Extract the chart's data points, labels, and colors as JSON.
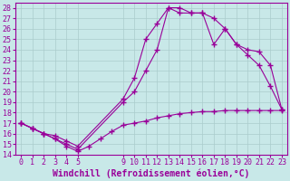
{
  "background_color": "#c8e8e8",
  "line_color": "#990099",
  "xlabel": "Windchill (Refroidissement éolien,°C)",
  "xlim": [
    -0.5,
    23.5
  ],
  "ylim": [
    14,
    28.5
  ],
  "yticks": [
    14,
    15,
    16,
    17,
    18,
    19,
    20,
    21,
    22,
    23,
    24,
    25,
    26,
    27,
    28
  ],
  "xticks": [
    0,
    1,
    2,
    3,
    4,
    5,
    9,
    10,
    11,
    12,
    13,
    14,
    15,
    16,
    17,
    18,
    19,
    20,
    21,
    22,
    23
  ],
  "line1_x": [
    0,
    1,
    2,
    3,
    4,
    5,
    9,
    10,
    11,
    12,
    13,
    14,
    15,
    16,
    17,
    18,
    19,
    20,
    21,
    22,
    23
  ],
  "line1_y": [
    17.0,
    16.5,
    16.0,
    15.8,
    15.3,
    14.8,
    19.3,
    21.3,
    25.0,
    26.5,
    28.0,
    28.0,
    27.5,
    27.5,
    27.0,
    26.0,
    24.5,
    24.0,
    23.8,
    22.5,
    18.3
  ],
  "line2_x": [
    0,
    1,
    2,
    3,
    4,
    5,
    9,
    10,
    11,
    12,
    13,
    14,
    15,
    16,
    17,
    18,
    19,
    20,
    21,
    22,
    23
  ],
  "line2_y": [
    17.0,
    16.5,
    16.0,
    15.5,
    15.0,
    14.5,
    19.0,
    20.0,
    22.0,
    24.0,
    28.0,
    27.5,
    27.5,
    27.5,
    24.5,
    26.0,
    24.5,
    23.5,
    22.5,
    20.5,
    18.3
  ],
  "line3_x": [
    0,
    1,
    2,
    3,
    4,
    5,
    6,
    7,
    8,
    9,
    10,
    11,
    12,
    13,
    14,
    15,
    16,
    17,
    18,
    19,
    20,
    21,
    22,
    23
  ],
  "line3_y": [
    17.0,
    16.5,
    16.0,
    15.5,
    14.8,
    14.3,
    14.8,
    15.5,
    16.2,
    16.8,
    17.0,
    17.2,
    17.5,
    17.7,
    17.9,
    18.0,
    18.1,
    18.1,
    18.2,
    18.2,
    18.2,
    18.2,
    18.2,
    18.2
  ],
  "xlabel_fontsize": 7,
  "tick_fontsize": 6,
  "grid_color": "#aacccc",
  "marker": "+",
  "marker_size": 4,
  "linewidth": 0.8
}
